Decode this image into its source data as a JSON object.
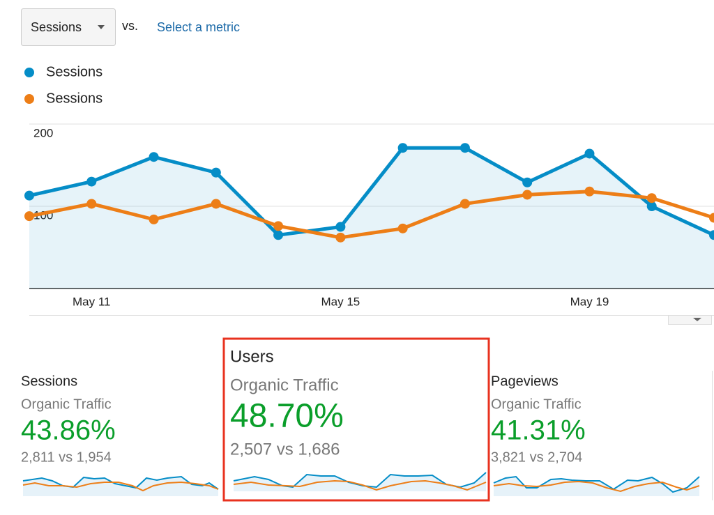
{
  "controls": {
    "metric": "Sessions",
    "vs": "vs.",
    "link": "Select a metric"
  },
  "chart_data": {
    "type": "line",
    "categories": [
      null,
      "May 11",
      null,
      null,
      null,
      "May 15",
      null,
      null,
      null,
      "May 19",
      null,
      null
    ],
    "series": [
      {
        "name": "Sessions",
        "color": "#058dc7",
        "values": [
          113,
          130,
          160,
          141,
          65,
          75,
          171,
          171,
          129,
          164,
          100,
          65
        ]
      },
      {
        "name": "Sessions",
        "color": "#ed7e17",
        "values": [
          88,
          103,
          84,
          103,
          76,
          62,
          73,
          103,
          114,
          118,
          110,
          86
        ]
      }
    ],
    "ylim": [
      0,
      200
    ],
    "yticks": [
      100,
      200
    ],
    "grid": true
  },
  "scorecards": [
    {
      "title": "Sessions",
      "subtitle": "Organic Traffic",
      "value": "43.86%",
      "comparison": "2,811 vs 1,954"
    },
    {
      "title": "Users",
      "subtitle": "Organic Traffic",
      "value": "48.70%",
      "comparison": "2,507 vs 1,686"
    },
    {
      "title": "Pageviews",
      "subtitle": "Organic Traffic",
      "value": "41.31%",
      "comparison": "3,821 vs 2,704"
    }
  ]
}
